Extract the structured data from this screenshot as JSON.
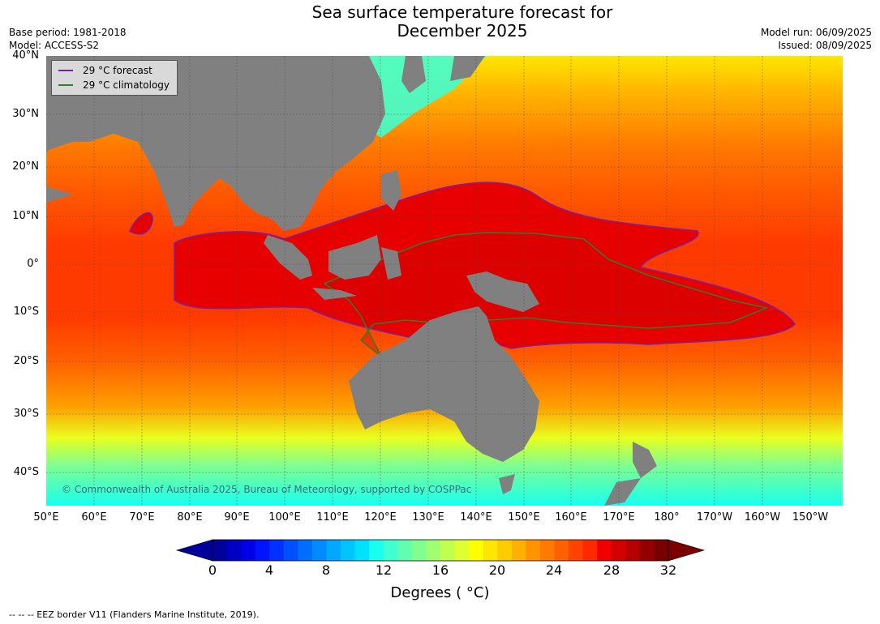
{
  "title_line1": "Sea surface temperature forecast for",
  "title_line2": "December 2025",
  "base_period": "Base period: 1981-2018",
  "model": "Model: ACCESS-S2",
  "model_run": "Model run: 06/09/2025",
  "issued": "Issued: 08/09/2025",
  "lat_labels": [
    "40°N",
    "30°N",
    "20°N",
    "10°N",
    "0°",
    "10°S",
    "20°S",
    "30°S",
    "40°S"
  ],
  "lon_labels": [
    "50°E",
    "60°E",
    "70°E",
    "80°E",
    "90°E",
    "100°E",
    "110°E",
    "120°E",
    "130°E",
    "140°E",
    "150°E",
    "160°E",
    "170°E",
    "180°",
    "170°W",
    "160°W",
    "150°W"
  ],
  "legend": {
    "forecast": {
      "label": "29 °C  forecast",
      "color": "#7b1fa2"
    },
    "climatology": {
      "label": "29 °C  climatology",
      "color": "#2e7d32"
    }
  },
  "copyright": "© Commonwealth of Australia 2025, Bureau of Meteorology, supported by COSPPac",
  "colorbar": {
    "ticks": [
      "0",
      "4",
      "8",
      "12",
      "16",
      "20",
      "24",
      "28",
      "32"
    ],
    "min": 0,
    "max": 32,
    "step": 1,
    "label": "Degrees ( °C)",
    "colors": [
      "#00009a",
      "#0000c4",
      "#0000e6",
      "#0014ff",
      "#0032ff",
      "#0050ff",
      "#006eff",
      "#008cff",
      "#00a8ff",
      "#00c4ff",
      "#00e0ff",
      "#18fff0",
      "#40ffd0",
      "#60ffb0",
      "#80ff90",
      "#a0ff70",
      "#c0ff50",
      "#e0ff30",
      "#ffff00",
      "#ffe600",
      "#ffcc00",
      "#ffb000",
      "#ff9400",
      "#ff7a00",
      "#ff6000",
      "#ff4400",
      "#ff2800",
      "#f00000",
      "#d40000",
      "#b40000",
      "#940000",
      "#7a0000"
    ]
  },
  "footnote": "--  --  -- EEZ border V11 (Flanders Marine Institute, 2019)."
}
